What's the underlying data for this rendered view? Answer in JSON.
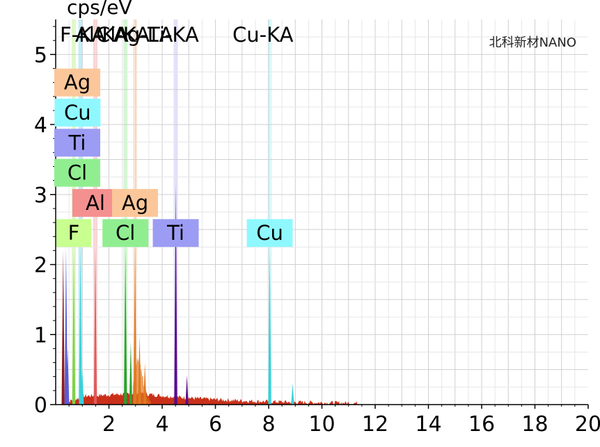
{
  "chart_data": {
    "type": "bar",
    "title": "",
    "ylabel": "cps/eV",
    "xlabel": "",
    "xlim": [
      0,
      20
    ],
    "ylim": [
      0,
      5.5
    ],
    "x_ticks": [
      "2",
      "4",
      "6",
      "8",
      "10",
      "12",
      "14",
      "16",
      "18",
      "20"
    ],
    "y_ticks": [
      "0",
      "1",
      "2",
      "3",
      "4",
      "5"
    ],
    "grid": true,
    "watermark": "北科新材NANO",
    "peak_labels_top": [
      {
        "text": "F-KA",
        "x": 0.68
      },
      {
        "text": "Al-KA",
        "x": 1.49
      },
      {
        "text": "Cl-KA",
        "x": 2.62
      },
      {
        "text": "Ag-LA",
        "x": 2.98
      },
      {
        "text": "Ti-KA",
        "x": 4.51
      },
      {
        "text": "Cu-KA",
        "x": 8.04
      }
    ],
    "line_markers": [
      {
        "element": "Cu",
        "x": 0.93,
        "color": "#8ee0f0"
      },
      {
        "element": "F",
        "x": 0.68,
        "color": "#c8f0a0"
      },
      {
        "element": "Al",
        "x": 1.49,
        "color": "#f4b0b0"
      },
      {
        "element": "Cl",
        "x": 2.62,
        "color": "#b0f0b0"
      },
      {
        "element": "Ag",
        "x": 2.98,
        "color": "#fad4b8"
      },
      {
        "element": "Ti",
        "x": 4.51,
        "color": "#c8c8f4"
      },
      {
        "element": "Cu",
        "x": 8.04,
        "color": "#b8f4f8"
      }
    ],
    "element_badges": [
      {
        "text": "Ag",
        "x": 0.28,
        "y": 4.6,
        "color": "#fbc79a"
      },
      {
        "text": "Cu",
        "x": 0.82,
        "y": 4.17,
        "color": "#8ff8ff"
      },
      {
        "text": "Ti",
        "x": 0.38,
        "y": 3.74,
        "color": "#9c9cf4"
      },
      {
        "text": "Cl",
        "x": 0.22,
        "y": 3.31,
        "color": "#90ee90"
      },
      {
        "text": "Al",
        "x": 1.49,
        "y": 2.88,
        "color": "#f49090"
      },
      {
        "text": "Ag",
        "x": 2.98,
        "y": 2.88,
        "color": "#fbc79a"
      },
      {
        "text": "F",
        "x": 0.68,
        "y": 2.45,
        "color": "#c8ff90"
      },
      {
        "text": "Cl",
        "x": 2.62,
        "y": 2.45,
        "color": "#90ee90"
      },
      {
        "text": "Ti",
        "x": 4.51,
        "y": 2.45,
        "color": "#9c9cf4"
      },
      {
        "text": "Cu",
        "x": 8.04,
        "y": 2.45,
        "color": "#8ff8ff"
      }
    ],
    "peaks": [
      {
        "x": 0.28,
        "y": 2.2,
        "color": "#8b1a1a"
      },
      {
        "x": 0.39,
        "y": 2.25,
        "color": "#5a5ad8"
      },
      {
        "x": 0.45,
        "y": 0.8,
        "color": "#5a5ad8"
      },
      {
        "x": 0.68,
        "y": 2.2,
        "color": "#7fd04a"
      },
      {
        "x": 0.93,
        "y": 2.22,
        "color": "#3ad0d8"
      },
      {
        "x": 1.0,
        "y": 0.5,
        "color": "#3ad0d8"
      },
      {
        "x": 1.49,
        "y": 2.25,
        "color": "#e05a5a"
      },
      {
        "x": 2.62,
        "y": 2.22,
        "color": "#2ea02e"
      },
      {
        "x": 2.82,
        "y": 0.9,
        "color": "#2ea02e"
      },
      {
        "x": 2.98,
        "y": 2.28,
        "color": "#e07820"
      },
      {
        "x": 3.15,
        "y": 1.0,
        "color": "#e07820"
      },
      {
        "x": 3.35,
        "y": 0.6,
        "color": "#e07820"
      },
      {
        "x": 4.51,
        "y": 3.15,
        "color": "#5a0a8a"
      },
      {
        "x": 4.93,
        "y": 0.42,
        "color": "#5a0a8a"
      },
      {
        "x": 8.04,
        "y": 2.2,
        "color": "#3ad0d8"
      },
      {
        "x": 8.9,
        "y": 0.3,
        "color": "#3ad0d8"
      }
    ],
    "background_color": "#c41a00"
  }
}
